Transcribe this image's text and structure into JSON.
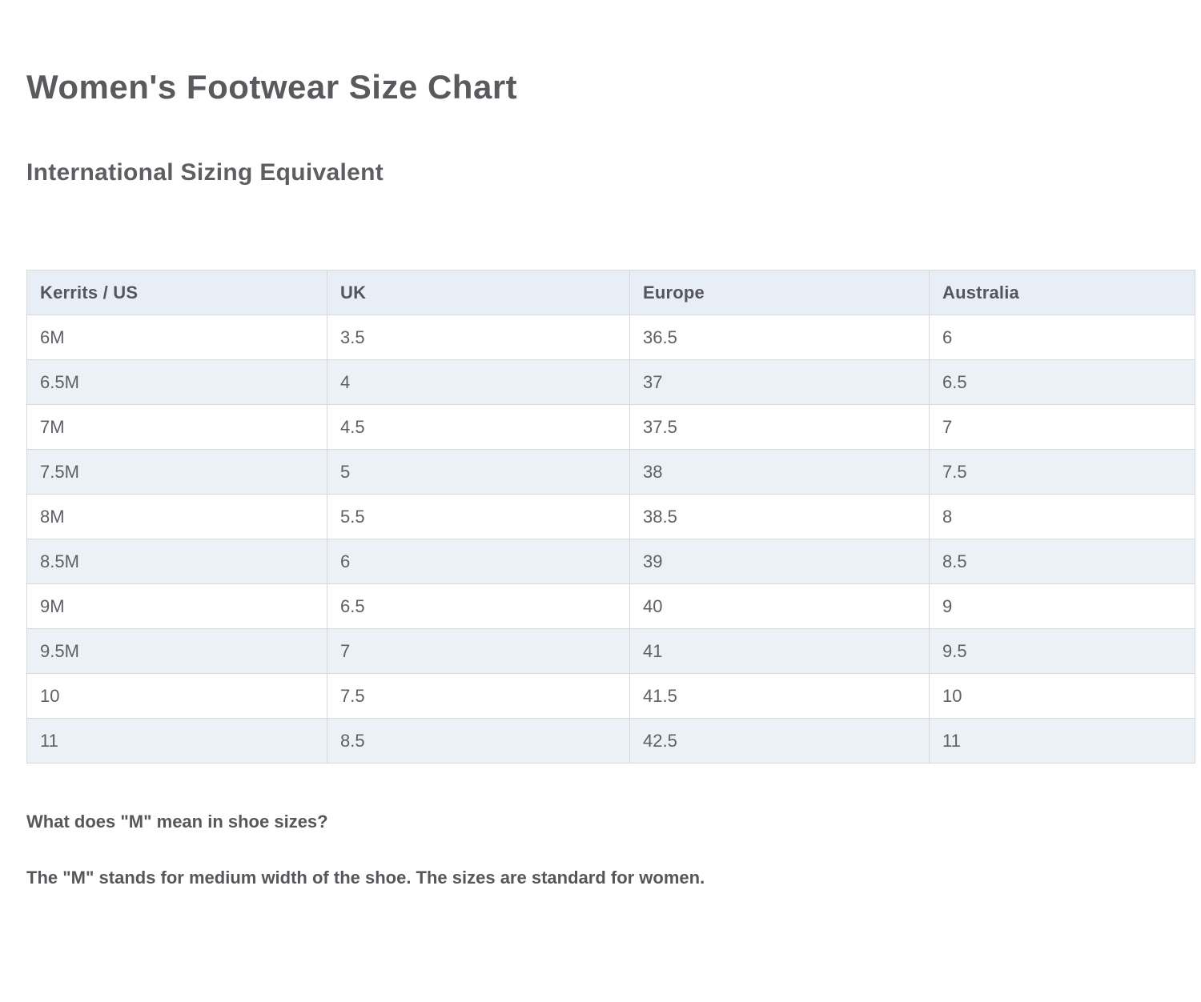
{
  "page": {
    "title": "Women's Footwear Size Chart",
    "subtitle": "International Sizing Equivalent"
  },
  "table": {
    "headers": [
      "Kerrits / US",
      "UK",
      "Europe",
      "Australia"
    ],
    "rows": [
      [
        "6M",
        "3.5",
        "36.5",
        "6"
      ],
      [
        "6.5M",
        "4",
        "37",
        "6.5"
      ],
      [
        "7M",
        "4.5",
        "37.5",
        "7"
      ],
      [
        "7.5M",
        "5",
        "38",
        "7.5"
      ],
      [
        "8M",
        "5.5",
        "38.5",
        "8"
      ],
      [
        "8.5M",
        "6",
        "39",
        "8.5"
      ],
      [
        "9M",
        "6.5",
        "40",
        "9"
      ],
      [
        "9.5M",
        "7",
        "41",
        "9.5"
      ],
      [
        "10",
        "7.5",
        "41.5",
        "10"
      ],
      [
        "11",
        "8.5",
        "42.5",
        "11"
      ]
    ]
  },
  "footnote": {
    "question": "What does \"M\" mean in shoe sizes?",
    "answer": "The \"M\" stands for medium width of the shoe. The sizes are standard for women."
  },
  "colors": {
    "header_bg": "#e8eef5",
    "stripe_bg": "#ecf1f8",
    "border": "#d6d8db",
    "heading_text": "#595a5e",
    "body_text": "#5e6065"
  }
}
